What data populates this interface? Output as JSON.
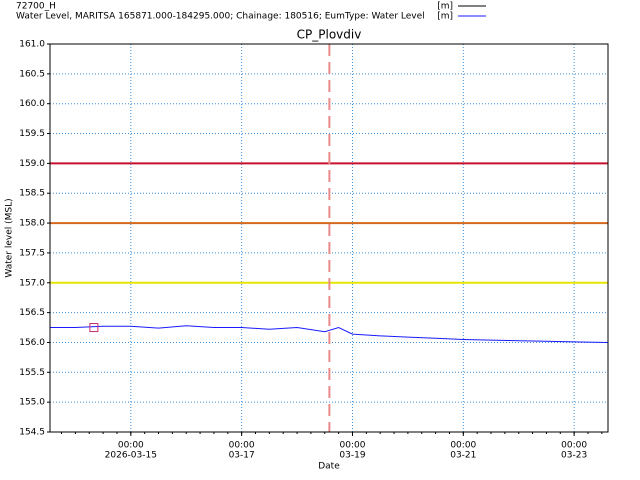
{
  "chart_data": {
    "type": "line",
    "title": "CP_Plovdiv",
    "legend": [
      {
        "name": "72700_H",
        "unit": "[m]",
        "color": "#000000"
      },
      {
        "name": "Water Level, MARITSA 165871.000-184295.000; Chainage: 180516; EumType: Water Level",
        "unit": "[m]",
        "color": "#1a1aff"
      }
    ],
    "xlabel": "Date",
    "ylabel": "Water level (MSL)",
    "x": [
      "2026-03-13T13:00",
      "2026-03-14T00:00",
      "2026-03-14T12:00",
      "2026-03-15T00:00",
      "2026-03-15T12:00",
      "2026-03-16T00:00",
      "2026-03-16T12:00",
      "2026-03-17T00:00",
      "2026-03-17T12:00",
      "2026-03-18T00:00",
      "2026-03-18T12:00",
      "2026-03-18T18:00",
      "2026-03-19T00:00",
      "2026-03-19T12:00",
      "2026-03-20T00:00",
      "2026-03-20T12:00",
      "2026-03-21T00:00",
      "2026-03-21T12:00",
      "2026-03-22T00:00",
      "2026-03-22T12:00",
      "2026-03-23T00:00",
      "2026-03-23T14:40"
    ],
    "series": [
      {
        "name": "Water Level, MARITSA 165871.000-184295.000; Chainage: 180516; EumType: Water Level",
        "color": "#1a1aff",
        "values": [
          156.25,
          156.25,
          156.27,
          156.27,
          156.24,
          156.28,
          156.25,
          156.25,
          156.22,
          156.25,
          156.18,
          156.25,
          156.14,
          156.11,
          156.09,
          156.07,
          156.05,
          156.04,
          156.03,
          156.02,
          156.01,
          156.0
        ]
      }
    ],
    "marker": {
      "x": "2026-03-14T08:00",
      "value": 156.25,
      "color": "#c0306a"
    },
    "hlines": [
      {
        "value": 159,
        "color": "#c8102e"
      },
      {
        "value": 158,
        "color": "#d2691e"
      },
      {
        "value": 157,
        "color": "#e6e600"
      }
    ],
    "vlines": [
      {
        "x": "2026-03-18T14:00",
        "color": "#e88a8a"
      }
    ],
    "xlim": [
      "2026-03-13T13:00",
      "2026-03-23T14:40"
    ],
    "xticks": [
      {
        "value": "2026-03-15T00:00",
        "label": [
          "00:00",
          "2026-03-15"
        ]
      },
      {
        "value": "2026-03-17T00:00",
        "label": [
          "00:00",
          "03-17"
        ]
      },
      {
        "value": "2026-03-19T00:00",
        "label": [
          "00:00",
          "03-19"
        ]
      },
      {
        "value": "2026-03-21T00:00",
        "label": [
          "00:00",
          "03-21"
        ]
      },
      {
        "value": "2026-03-23T00:00",
        "label": [
          "00:00",
          "03-23"
        ]
      }
    ],
    "ylim": [
      154.5,
      161
    ],
    "yticks": [
      154.5,
      {
        "value": 155,
        "label": "155.0"
      },
      155.5,
      {
        "value": 156,
        "label": "156.0"
      },
      156.5,
      {
        "value": 157,
        "label": "157.0"
      },
      157.5,
      {
        "value": 158,
        "label": "158.0"
      },
      158.5,
      {
        "value": 159,
        "label": "159.0"
      },
      159.5,
      {
        "value": 160,
        "label": "160.0"
      },
      160.5,
      {
        "value": 161,
        "label": "161.0"
      }
    ],
    "grid": true
  }
}
